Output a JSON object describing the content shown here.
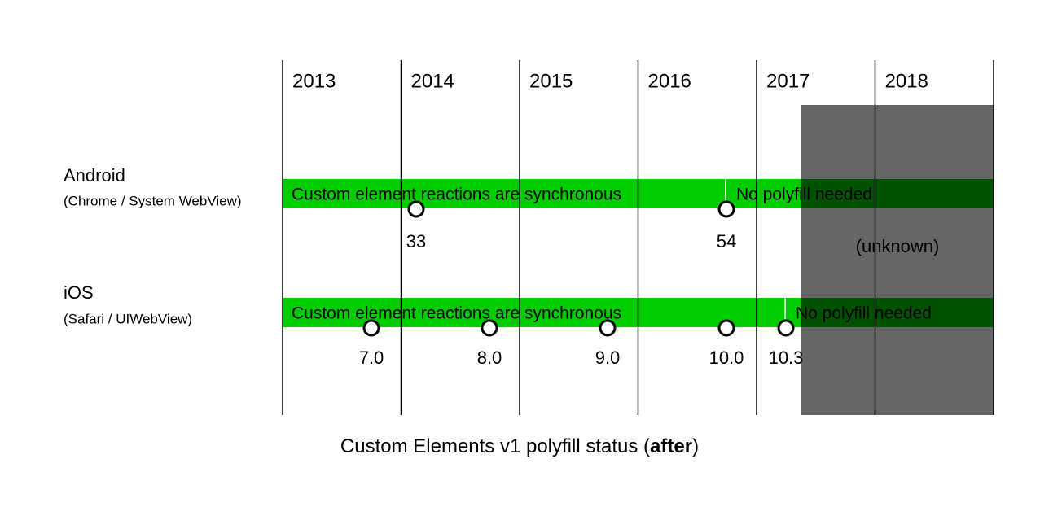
{
  "years": [
    "2013",
    "2014",
    "2015",
    "2016",
    "2017",
    "2018"
  ],
  "platforms": [
    {
      "name": "Android",
      "detail": "(Chrome / System WebView)",
      "segments": [
        "Custom element reactions are synchronous",
        "No polyfill needed"
      ],
      "versions": [
        "33",
        "54"
      ]
    },
    {
      "name": "iOS",
      "detail": "(Safari / UIWebView)",
      "segments": [
        "Custom element reactions are synchronous",
        "No polyfill needed"
      ],
      "versions": [
        "7.0",
        "8.0",
        "9.0",
        "10.0",
        "10.3"
      ]
    }
  ],
  "unknown": "(unknown)",
  "caption": {
    "before": "Custom Elements v1 polyfill status (",
    "emphasis": "after",
    "after": ")"
  }
}
